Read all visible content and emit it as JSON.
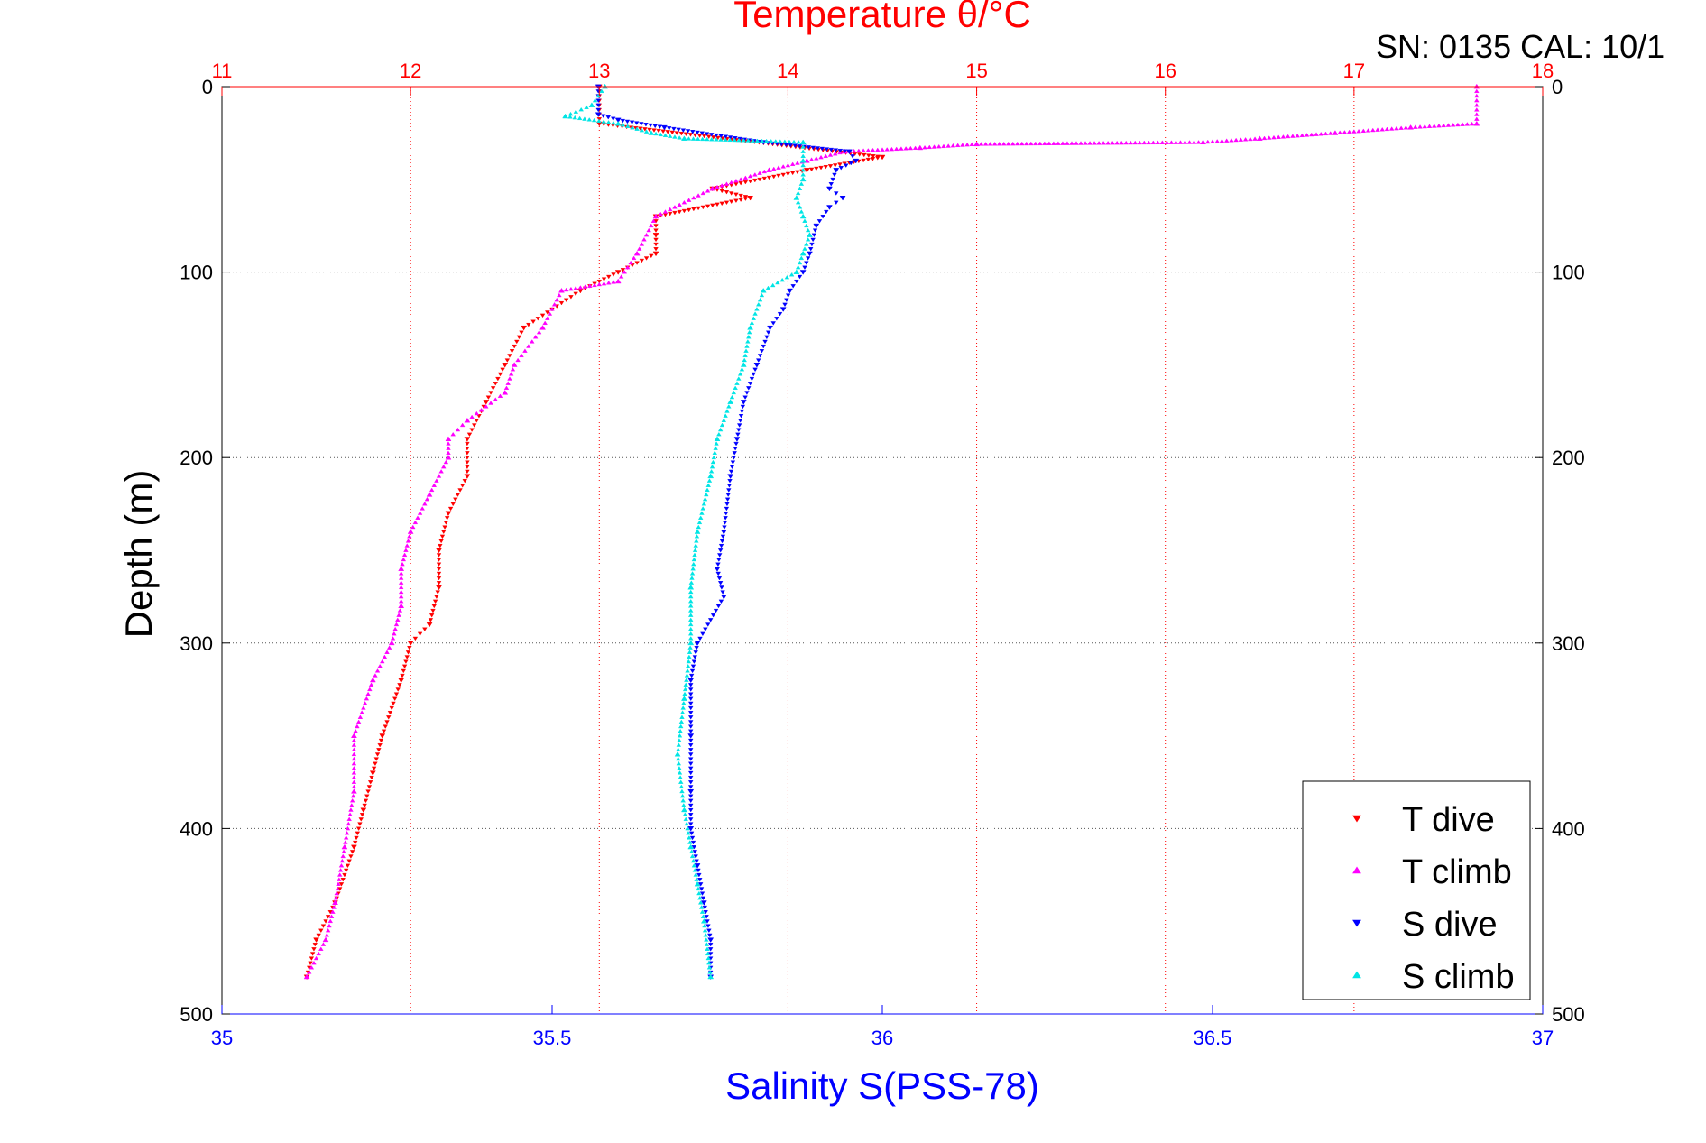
{
  "chart_data": {
    "type": "scatter",
    "title_top": "Temperature θ/°C",
    "serial_info": "SN: 0135  CAL: 10/1",
    "ylabel": "Depth (m)",
    "xlabel_bottom": "Salinity S(PSS-78)",
    "y_axis": {
      "range": [
        0,
        500
      ],
      "reversed": true,
      "ticks": [
        "0",
        "100",
        "200",
        "300",
        "400",
        "500"
      ]
    },
    "x_top": {
      "range": [
        11,
        18
      ],
      "ticks": [
        "11",
        "12",
        "13",
        "14",
        "15",
        "16",
        "17",
        "18"
      ],
      "grid": true
    },
    "x_bottom": {
      "range": [
        35,
        37
      ],
      "ticks": [
        "35",
        "35.5",
        "36",
        "36.5",
        "37"
      ]
    },
    "legend": {
      "placement": "bottom-right",
      "entries": [
        {
          "label": "T dive",
          "color": "#ff0000",
          "marker": "triangle-down"
        },
        {
          "label": "T climb",
          "color": "#ff00ff",
          "marker": "triangle-up"
        },
        {
          "label": "S dive",
          "color": "#0000ff",
          "marker": "triangle-down"
        },
        {
          "label": "S climb",
          "color": "#00e5e5",
          "marker": "triangle-up"
        }
      ]
    },
    "colors": {
      "temperature_axis": "#ff0000",
      "salinity_axis": "#0000ff"
    },
    "series": [
      {
        "name": "T dive",
        "axis": "temperature",
        "points": [
          [
            0,
            13.0
          ],
          [
            20,
            13.0
          ],
          [
            38,
            14.5
          ],
          [
            45,
            14.1
          ],
          [
            55,
            13.6
          ],
          [
            60,
            13.8
          ],
          [
            70,
            13.3
          ],
          [
            80,
            13.3
          ],
          [
            90,
            13.3
          ],
          [
            100,
            13.1
          ],
          [
            110,
            12.9
          ],
          [
            130,
            12.6
          ],
          [
            150,
            12.5
          ],
          [
            170,
            12.4
          ],
          [
            190,
            12.3
          ],
          [
            210,
            12.3
          ],
          [
            230,
            12.2
          ],
          [
            250,
            12.15
          ],
          [
            270,
            12.15
          ],
          [
            290,
            12.1
          ],
          [
            300,
            12.0
          ],
          [
            320,
            11.95
          ],
          [
            350,
            11.85
          ],
          [
            370,
            11.8
          ],
          [
            390,
            11.75
          ],
          [
            410,
            11.7
          ],
          [
            440,
            11.6
          ],
          [
            460,
            11.5
          ],
          [
            480,
            11.45
          ]
        ]
      },
      {
        "name": "T climb",
        "axis": "temperature",
        "points": [
          [
            0,
            17.65
          ],
          [
            20,
            17.65
          ],
          [
            22,
            17.3
          ],
          [
            25,
            16.9
          ],
          [
            28,
            16.5
          ],
          [
            30,
            16.2
          ],
          [
            31,
            15.0
          ],
          [
            33,
            14.7
          ],
          [
            35,
            14.3
          ],
          [
            40,
            14.1
          ],
          [
            45,
            13.9
          ],
          [
            55,
            13.6
          ],
          [
            70,
            13.3
          ],
          [
            90,
            13.2
          ],
          [
            105,
            13.1
          ],
          [
            110,
            12.8
          ],
          [
            130,
            12.7
          ],
          [
            150,
            12.55
          ],
          [
            165,
            12.5
          ],
          [
            180,
            12.3
          ],
          [
            190,
            12.2
          ],
          [
            200,
            12.2
          ],
          [
            220,
            12.1
          ],
          [
            240,
            12.0
          ],
          [
            260,
            11.95
          ],
          [
            280,
            11.95
          ],
          [
            300,
            11.9
          ],
          [
            320,
            11.8
          ],
          [
            350,
            11.7
          ],
          [
            380,
            11.7
          ],
          [
            410,
            11.65
          ],
          [
            440,
            11.6
          ],
          [
            460,
            11.55
          ],
          [
            480,
            11.45
          ]
        ]
      },
      {
        "name": "S dive",
        "axis": "salinity",
        "points": [
          [
            0,
            35.57
          ],
          [
            15,
            35.57
          ],
          [
            18,
            35.6
          ],
          [
            22,
            35.67
          ],
          [
            30,
            35.82
          ],
          [
            35,
            35.95
          ],
          [
            40,
            35.96
          ],
          [
            45,
            35.93
          ],
          [
            55,
            35.92
          ],
          [
            60,
            35.94
          ],
          [
            65,
            35.92
          ],
          [
            75,
            35.9
          ],
          [
            90,
            35.89
          ],
          [
            100,
            35.88
          ],
          [
            110,
            35.86
          ],
          [
            120,
            35.85
          ],
          [
            130,
            35.83
          ],
          [
            150,
            35.81
          ],
          [
            170,
            35.79
          ],
          [
            190,
            35.78
          ],
          [
            210,
            35.77
          ],
          [
            240,
            35.76
          ],
          [
            260,
            35.75
          ],
          [
            275,
            35.76
          ],
          [
            300,
            35.72
          ],
          [
            320,
            35.71
          ],
          [
            350,
            35.71
          ],
          [
            380,
            35.71
          ],
          [
            400,
            35.71
          ],
          [
            420,
            35.72
          ],
          [
            440,
            35.73
          ],
          [
            460,
            35.74
          ],
          [
            480,
            35.74
          ]
        ]
      },
      {
        "name": "S climb",
        "axis": "salinity",
        "points": [
          [
            0,
            35.58
          ],
          [
            10,
            35.56
          ],
          [
            16,
            35.52
          ],
          [
            20,
            35.6
          ],
          [
            25,
            35.65
          ],
          [
            28,
            35.7
          ],
          [
            30,
            35.88
          ],
          [
            40,
            35.88
          ],
          [
            50,
            35.88
          ],
          [
            60,
            35.87
          ],
          [
            70,
            35.88
          ],
          [
            80,
            35.89
          ],
          [
            90,
            35.88
          ],
          [
            100,
            35.87
          ],
          [
            110,
            35.82
          ],
          [
            130,
            35.8
          ],
          [
            150,
            35.79
          ],
          [
            170,
            35.77
          ],
          [
            190,
            35.75
          ],
          [
            210,
            35.74
          ],
          [
            240,
            35.72
          ],
          [
            270,
            35.71
          ],
          [
            300,
            35.71
          ],
          [
            330,
            35.7
          ],
          [
            360,
            35.69
          ],
          [
            390,
            35.7
          ],
          [
            410,
            35.71
          ],
          [
            430,
            35.72
          ],
          [
            450,
            35.73
          ],
          [
            480,
            35.74
          ]
        ]
      }
    ]
  }
}
